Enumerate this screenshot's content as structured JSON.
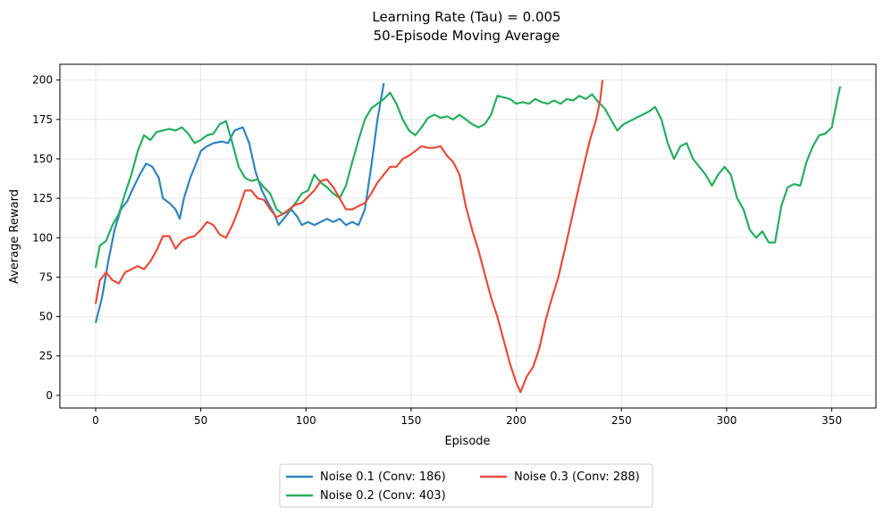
{
  "chart_data": {
    "type": "line",
    "title": "Learning Rate (Tau) = 0.005",
    "subtitle": "50-Episode Moving Average",
    "xlabel": "Episode",
    "ylabel": "Average Reward",
    "xlim": [
      -17,
      371
    ],
    "ylim": [
      -8,
      210
    ],
    "xticks": [
      0,
      50,
      100,
      150,
      200,
      250,
      300,
      350
    ],
    "yticks": [
      0,
      25,
      50,
      75,
      100,
      125,
      150,
      175,
      200
    ],
    "grid": true,
    "legend_position": "bottom-center, outside",
    "series": [
      {
        "name": "Noise 0.1 (Conv: 186)",
        "color": "#2e86c1",
        "points": [
          [
            0,
            46
          ],
          [
            3,
            62
          ],
          [
            6,
            85
          ],
          [
            9,
            105
          ],
          [
            12,
            118
          ],
          [
            15,
            123
          ],
          [
            18,
            132
          ],
          [
            21,
            140
          ],
          [
            24,
            147
          ],
          [
            27,
            145
          ],
          [
            30,
            138
          ],
          [
            32,
            125
          ],
          [
            35,
            122
          ],
          [
            38,
            118
          ],
          [
            40,
            112
          ],
          [
            42,
            125
          ],
          [
            45,
            138
          ],
          [
            48,
            148
          ],
          [
            50,
            155
          ],
          [
            53,
            158
          ],
          [
            56,
            160
          ],
          [
            60,
            161
          ],
          [
            63,
            160
          ],
          [
            66,
            168
          ],
          [
            70,
            170
          ],
          [
            73,
            160
          ],
          [
            76,
            142
          ],
          [
            79,
            130
          ],
          [
            82,
            122
          ],
          [
            85,
            115
          ],
          [
            87,
            108
          ],
          [
            90,
            113
          ],
          [
            93,
            118
          ],
          [
            96,
            113
          ],
          [
            98,
            108
          ],
          [
            101,
            110
          ],
          [
            104,
            108
          ],
          [
            107,
            110
          ],
          [
            110,
            112
          ],
          [
            113,
            110
          ],
          [
            116,
            112
          ],
          [
            119,
            108
          ],
          [
            122,
            110
          ],
          [
            125,
            108
          ],
          [
            128,
            118
          ],
          [
            131,
            145
          ],
          [
            134,
            175
          ],
          [
            137,
            198
          ]
        ]
      },
      {
        "name": "Noise 0.2 (Conv: 403)",
        "color": "#27ae60",
        "points": [
          [
            0,
            81
          ],
          [
            2,
            95
          ],
          [
            5,
            98
          ],
          [
            8,
            108
          ],
          [
            11,
            115
          ],
          [
            14,
            128
          ],
          [
            17,
            140
          ],
          [
            20,
            155
          ],
          [
            23,
            165
          ],
          [
            26,
            162
          ],
          [
            29,
            167
          ],
          [
            32,
            168
          ],
          [
            35,
            169
          ],
          [
            38,
            168
          ],
          [
            41,
            170
          ],
          [
            44,
            166
          ],
          [
            47,
            160
          ],
          [
            50,
            162
          ],
          [
            53,
            165
          ],
          [
            56,
            166
          ],
          [
            59,
            172
          ],
          [
            62,
            174
          ],
          [
            65,
            160
          ],
          [
            68,
            145
          ],
          [
            71,
            138
          ],
          [
            74,
            136
          ],
          [
            77,
            137
          ],
          [
            80,
            132
          ],
          [
            83,
            128
          ],
          [
            86,
            118
          ],
          [
            89,
            115
          ],
          [
            92,
            117
          ],
          [
            95,
            122
          ],
          [
            98,
            128
          ],
          [
            101,
            130
          ],
          [
            104,
            140
          ],
          [
            107,
            135
          ],
          [
            110,
            132
          ],
          [
            113,
            128
          ],
          [
            116,
            125
          ],
          [
            119,
            133
          ],
          [
            122,
            148
          ],
          [
            125,
            162
          ],
          [
            128,
            175
          ],
          [
            131,
            182
          ],
          [
            134,
            185
          ],
          [
            137,
            188
          ],
          [
            140,
            192
          ],
          [
            143,
            185
          ],
          [
            146,
            175
          ],
          [
            149,
            168
          ],
          [
            152,
            165
          ],
          [
            155,
            170
          ],
          [
            158,
            176
          ],
          [
            161,
            178
          ],
          [
            164,
            176
          ],
          [
            167,
            177
          ],
          [
            170,
            175
          ],
          [
            173,
            178
          ],
          [
            176,
            175
          ],
          [
            179,
            172
          ],
          [
            182,
            170
          ],
          [
            185,
            172
          ],
          [
            188,
            178
          ],
          [
            191,
            190
          ],
          [
            194,
            189
          ],
          [
            197,
            188
          ],
          [
            200,
            185
          ],
          [
            203,
            186
          ],
          [
            206,
            185
          ],
          [
            209,
            188
          ],
          [
            212,
            186
          ],
          [
            215,
            185
          ],
          [
            218,
            187
          ],
          [
            221,
            185
          ],
          [
            224,
            188
          ],
          [
            227,
            187
          ],
          [
            230,
            190
          ],
          [
            233,
            188
          ],
          [
            236,
            191
          ],
          [
            239,
            186
          ],
          [
            242,
            182
          ],
          [
            245,
            175
          ],
          [
            248,
            168
          ],
          [
            251,
            172
          ],
          [
            254,
            174
          ],
          [
            257,
            176
          ],
          [
            260,
            178
          ],
          [
            263,
            180
          ],
          [
            266,
            183
          ],
          [
            269,
            175
          ],
          [
            272,
            160
          ],
          [
            275,
            150
          ],
          [
            278,
            158
          ],
          [
            281,
            160
          ],
          [
            284,
            150
          ],
          [
            287,
            145
          ],
          [
            290,
            140
          ],
          [
            293,
            133
          ],
          [
            296,
            140
          ],
          [
            299,
            145
          ],
          [
            302,
            140
          ],
          [
            305,
            125
          ],
          [
            308,
            118
          ],
          [
            311,
            105
          ],
          [
            314,
            100
          ],
          [
            317,
            104
          ],
          [
            320,
            97
          ],
          [
            323,
            97
          ],
          [
            326,
            120
          ],
          [
            329,
            132
          ],
          [
            332,
            134
          ],
          [
            335,
            133
          ],
          [
            338,
            148
          ],
          [
            341,
            158
          ],
          [
            344,
            165
          ],
          [
            347,
            166
          ],
          [
            350,
            170
          ],
          [
            353,
            190
          ],
          [
            354,
            196
          ]
        ]
      },
      {
        "name": "Noise 0.3 (Conv: 288)",
        "color": "#e74c3c",
        "points": [
          [
            0,
            58
          ],
          [
            2,
            73
          ],
          [
            5,
            78
          ],
          [
            8,
            73
          ],
          [
            11,
            71
          ],
          [
            14,
            78
          ],
          [
            17,
            80
          ],
          [
            20,
            82
          ],
          [
            23,
            80
          ],
          [
            26,
            85
          ],
          [
            29,
            92
          ],
          [
            32,
            101
          ],
          [
            35,
            101
          ],
          [
            38,
            93
          ],
          [
            41,
            98
          ],
          [
            44,
            100
          ],
          [
            47,
            101
          ],
          [
            50,
            105
          ],
          [
            53,
            110
          ],
          [
            56,
            108
          ],
          [
            59,
            102
          ],
          [
            62,
            100
          ],
          [
            65,
            108
          ],
          [
            68,
            118
          ],
          [
            71,
            130
          ],
          [
            74,
            130
          ],
          [
            77,
            125
          ],
          [
            80,
            124
          ],
          [
            83,
            118
          ],
          [
            86,
            113
          ],
          [
            89,
            115
          ],
          [
            92,
            118
          ],
          [
            95,
            121
          ],
          [
            98,
            122
          ],
          [
            101,
            126
          ],
          [
            104,
            130
          ],
          [
            107,
            136
          ],
          [
            110,
            137
          ],
          [
            113,
            132
          ],
          [
            116,
            125
          ],
          [
            119,
            118
          ],
          [
            122,
            118
          ],
          [
            125,
            120
          ],
          [
            128,
            122
          ],
          [
            131,
            128
          ],
          [
            134,
            135
          ],
          [
            137,
            140
          ],
          [
            140,
            145
          ],
          [
            143,
            145
          ],
          [
            146,
            150
          ],
          [
            149,
            152
          ],
          [
            152,
            155
          ],
          [
            155,
            158
          ],
          [
            158,
            157
          ],
          [
            161,
            157
          ],
          [
            164,
            158
          ],
          [
            167,
            152
          ],
          [
            170,
            148
          ],
          [
            173,
            140
          ],
          [
            176,
            120
          ],
          [
            179,
            105
          ],
          [
            182,
            92
          ],
          [
            185,
            77
          ],
          [
            188,
            62
          ],
          [
            191,
            50
          ],
          [
            194,
            35
          ],
          [
            197,
            20
          ],
          [
            200,
            8
          ],
          [
            202,
            2
          ],
          [
            205,
            12
          ],
          [
            208,
            18
          ],
          [
            211,
            30
          ],
          [
            214,
            48
          ],
          [
            217,
            62
          ],
          [
            220,
            75
          ],
          [
            223,
            92
          ],
          [
            226,
            110
          ],
          [
            229,
            128
          ],
          [
            232,
            145
          ],
          [
            235,
            162
          ],
          [
            238,
            175
          ],
          [
            240,
            188
          ],
          [
            241,
            200
          ]
        ]
      }
    ]
  }
}
